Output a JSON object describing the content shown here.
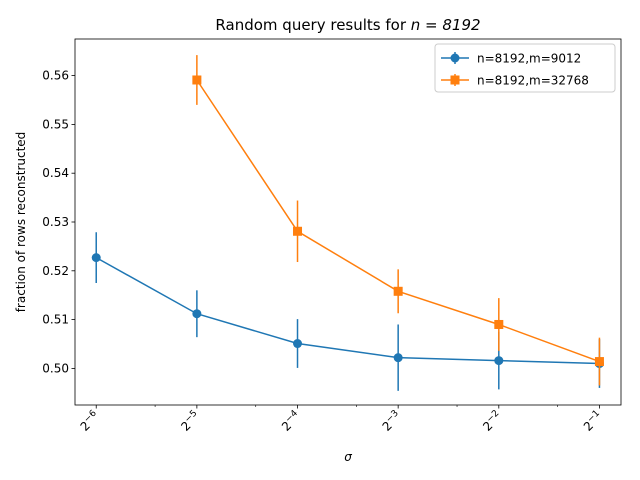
{
  "chart_data": {
    "type": "line",
    "title_prefix": "Random query results for ",
    "title_math": "n = 8192",
    "xlabel": "σ",
    "ylabel": "fraction of rows reconstructed",
    "x_scale": "log2",
    "x_ticks": [
      {
        "value": 0.015625,
        "base": "2",
        "exp": "−6"
      },
      {
        "value": 0.03125,
        "base": "2",
        "exp": "−5"
      },
      {
        "value": 0.0625,
        "base": "2",
        "exp": "−4"
      },
      {
        "value": 0.125,
        "base": "2",
        "exp": "−3"
      },
      {
        "value": 0.25,
        "base": "2",
        "exp": "−2"
      },
      {
        "value": 0.5,
        "base": "2",
        "exp": "−1"
      }
    ],
    "y_ticks": [
      "0.50",
      "0.51",
      "0.52",
      "0.53",
      "0.54",
      "0.55",
      "0.56"
    ],
    "y_tick_values": [
      0.5,
      0.51,
      0.52,
      0.53,
      0.54,
      0.55,
      0.56
    ],
    "xlim": [
      0.0135,
      0.58
    ],
    "ylim": [
      0.4925,
      0.5675
    ],
    "grid": false,
    "legend_position": "top-right",
    "series": [
      {
        "name": "n=8192,m=9012",
        "color": "#1f77b4",
        "marker": "circle",
        "x": [
          0.015625,
          0.03125,
          0.0625,
          0.125,
          0.25,
          0.5
        ],
        "y": [
          0.5227,
          0.5112,
          0.5051,
          0.5022,
          0.5016,
          0.501
        ],
        "yerr": [
          0.0052,
          0.0048,
          0.005,
          0.0068,
          0.0059,
          0.005
        ]
      },
      {
        "name": "n=8192,m=32768",
        "color": "#ff7f0e",
        "marker": "square",
        "x": [
          0.03125,
          0.0625,
          0.125,
          0.25,
          0.5
        ],
        "y": [
          0.5591,
          0.5281,
          0.5158,
          0.509,
          0.5014
        ],
        "yerr": [
          0.0051,
          0.0063,
          0.0045,
          0.0054,
          0.0049
        ]
      }
    ]
  }
}
